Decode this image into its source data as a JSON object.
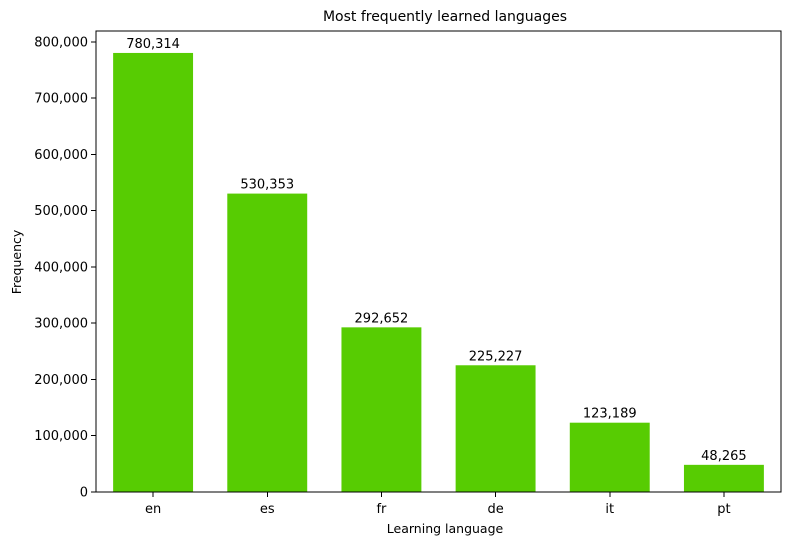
{
  "chart_data": {
    "type": "bar",
    "title": "Most frequently learned languages",
    "xlabel": "Learning language",
    "ylabel": "Frequency",
    "categories": [
      "en",
      "es",
      "fr",
      "de",
      "it",
      "pt"
    ],
    "values": [
      780314,
      530353,
      292652,
      225227,
      123189,
      48265
    ],
    "value_labels": [
      "780,314",
      "530,353",
      "292,652",
      "225,227",
      "123,189",
      "48,265"
    ],
    "ylim": [
      0,
      819329
    ],
    "yticks": [
      0,
      100000,
      200000,
      300000,
      400000,
      500000,
      600000,
      700000,
      800000
    ],
    "ytick_labels": [
      "0",
      "100,000",
      "200,000",
      "300,000",
      "400,000",
      "500,000",
      "600,000",
      "700,000",
      "800,000"
    ],
    "grid": false,
    "legend": "none",
    "colors": {
      "bar": "#57cc02",
      "axis": "#000000",
      "background": "#ffffff"
    }
  }
}
